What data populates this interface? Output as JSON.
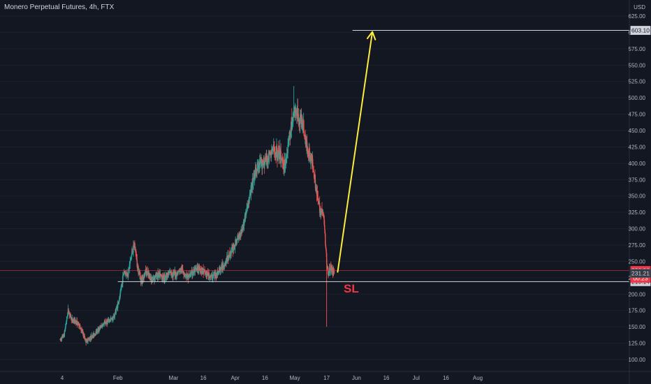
{
  "header": {
    "title": "Monero Perpetual Futures, 4h, FTX"
  },
  "colors": {
    "background": "#131722",
    "up": "#26a69a",
    "down": "#ef5350",
    "arrow": "#ffeb3b",
    "level_line": "#d1d4dc",
    "current_price_line": "#f23645",
    "sl_text": "#f23645"
  },
  "annotations": {
    "sl": "SL"
  },
  "chart_data": {
    "type": "candlestick",
    "title": "Monero Perpetual Futures, 4h, FTX",
    "currency": "USD",
    "ylim": [
      85,
      640
    ],
    "y_ticks": [
      100,
      125,
      150,
      175,
      200,
      225,
      250,
      275,
      300,
      325,
      350,
      375,
      400,
      425,
      450,
      475,
      500,
      525,
      550,
      575,
      600,
      625
    ],
    "y_tick_labels": [
      "100.00",
      "125.00",
      "150.00",
      "175.00",
      "200.00",
      "225.00",
      "250.00",
      "275.00",
      "300.00",
      "325.00",
      "350.00",
      "375.00",
      "400.00",
      "425.00",
      "450.00",
      "475.00",
      "500.00",
      "525.00",
      "550.00",
      "575.00",
      "600.00",
      "625.00"
    ],
    "x_labels": [
      {
        "label": "4",
        "day": 4
      },
      {
        "label": "Feb",
        "day": 32
      },
      {
        "label": "Mar",
        "day": 60
      },
      {
        "label": "16",
        "day": 75
      },
      {
        "label": "Apr",
        "day": 91
      },
      {
        "label": "16",
        "day": 106
      },
      {
        "label": "May",
        "day": 121
      },
      {
        "label": "17",
        "day": 137
      },
      {
        "label": "Jun",
        "day": 152
      },
      {
        "label": "16",
        "day": 167
      },
      {
        "label": "Jul",
        "day": 182
      },
      {
        "label": "16",
        "day": 197
      },
      {
        "label": "Aug",
        "day": 213
      }
    ],
    "price_path": [
      {
        "day": 3.0,
        "price": 130
      },
      {
        "day": 5.0,
        "price": 138
      },
      {
        "day": 7.0,
        "price": 175
      },
      {
        "day": 9.0,
        "price": 160
      },
      {
        "day": 11.0,
        "price": 158
      },
      {
        "day": 13.0,
        "price": 150
      },
      {
        "day": 16.0,
        "price": 128
      },
      {
        "day": 19.0,
        "price": 135
      },
      {
        "day": 22.0,
        "price": 145
      },
      {
        "day": 25.0,
        "price": 155
      },
      {
        "day": 28.0,
        "price": 160
      },
      {
        "day": 30.0,
        "price": 165
      },
      {
        "day": 33.0,
        "price": 195
      },
      {
        "day": 35.0,
        "price": 235
      },
      {
        "day": 37.0,
        "price": 230
      },
      {
        "day": 39.0,
        "price": 262
      },
      {
        "day": 40.5,
        "price": 275
      },
      {
        "day": 42.0,
        "price": 240
      },
      {
        "day": 44.0,
        "price": 220
      },
      {
        "day": 46.0,
        "price": 235
      },
      {
        "day": 49.0,
        "price": 222
      },
      {
        "day": 52.0,
        "price": 230
      },
      {
        "day": 55.0,
        "price": 225
      },
      {
        "day": 58.0,
        "price": 232
      },
      {
        "day": 61.0,
        "price": 230
      },
      {
        "day": 64.0,
        "price": 238
      },
      {
        "day": 67.0,
        "price": 226
      },
      {
        "day": 70.0,
        "price": 234
      },
      {
        "day": 73.0,
        "price": 240
      },
      {
        "day": 76.0,
        "price": 232
      },
      {
        "day": 79.0,
        "price": 226
      },
      {
        "day": 82.0,
        "price": 232
      },
      {
        "day": 86.0,
        "price": 248
      },
      {
        "day": 89.0,
        "price": 265
      },
      {
        "day": 92.0,
        "price": 282
      },
      {
        "day": 95.0,
        "price": 305
      },
      {
        "day": 98.0,
        "price": 345
      },
      {
        "day": 101.0,
        "price": 385
      },
      {
        "day": 104.0,
        "price": 400
      },
      {
        "day": 107.0,
        "price": 405
      },
      {
        "day": 110.0,
        "price": 420
      },
      {
        "day": 113.0,
        "price": 415
      },
      {
        "day": 116.0,
        "price": 395
      },
      {
        "day": 119.0,
        "price": 455
      },
      {
        "day": 121.0,
        "price": 480
      },
      {
        "day": 123.0,
        "price": 470
      },
      {
        "day": 125.0,
        "price": 460
      },
      {
        "day": 127.0,
        "price": 425
      },
      {
        "day": 130.0,
        "price": 400
      },
      {
        "day": 133.0,
        "price": 335
      },
      {
        "day": 135.5,
        "price": 320
      },
      {
        "day": 137.0,
        "price": 250
      },
      {
        "day": 137.8,
        "price": 232
      },
      {
        "day": 139.0,
        "price": 240
      },
      {
        "day": 141.0,
        "price": 233
      }
    ],
    "extremes": [
      {
        "label": "high",
        "day": 120.5,
        "price": 518
      },
      {
        "label": "low",
        "day": 137.0,
        "price": 150
      }
    ],
    "levels": [
      {
        "price": 603.1,
        "label": "603.10",
        "day_from": 150,
        "day_to": 230,
        "type": "target"
      },
      {
        "price": 219.14,
        "label": "219.14",
        "day_from": 32,
        "day_to": 230,
        "type": "stop"
      }
    ],
    "current_price": {
      "price": 236.06,
      "label": "236.06",
      "countdown": "00:23"
    },
    "last_price_tag": {
      "price": 231.21,
      "label": "231.21"
    },
    "arrow": {
      "from": {
        "day": 142.5,
        "price": 233
      },
      "to": {
        "day": 160,
        "price": 603.1
      }
    }
  }
}
